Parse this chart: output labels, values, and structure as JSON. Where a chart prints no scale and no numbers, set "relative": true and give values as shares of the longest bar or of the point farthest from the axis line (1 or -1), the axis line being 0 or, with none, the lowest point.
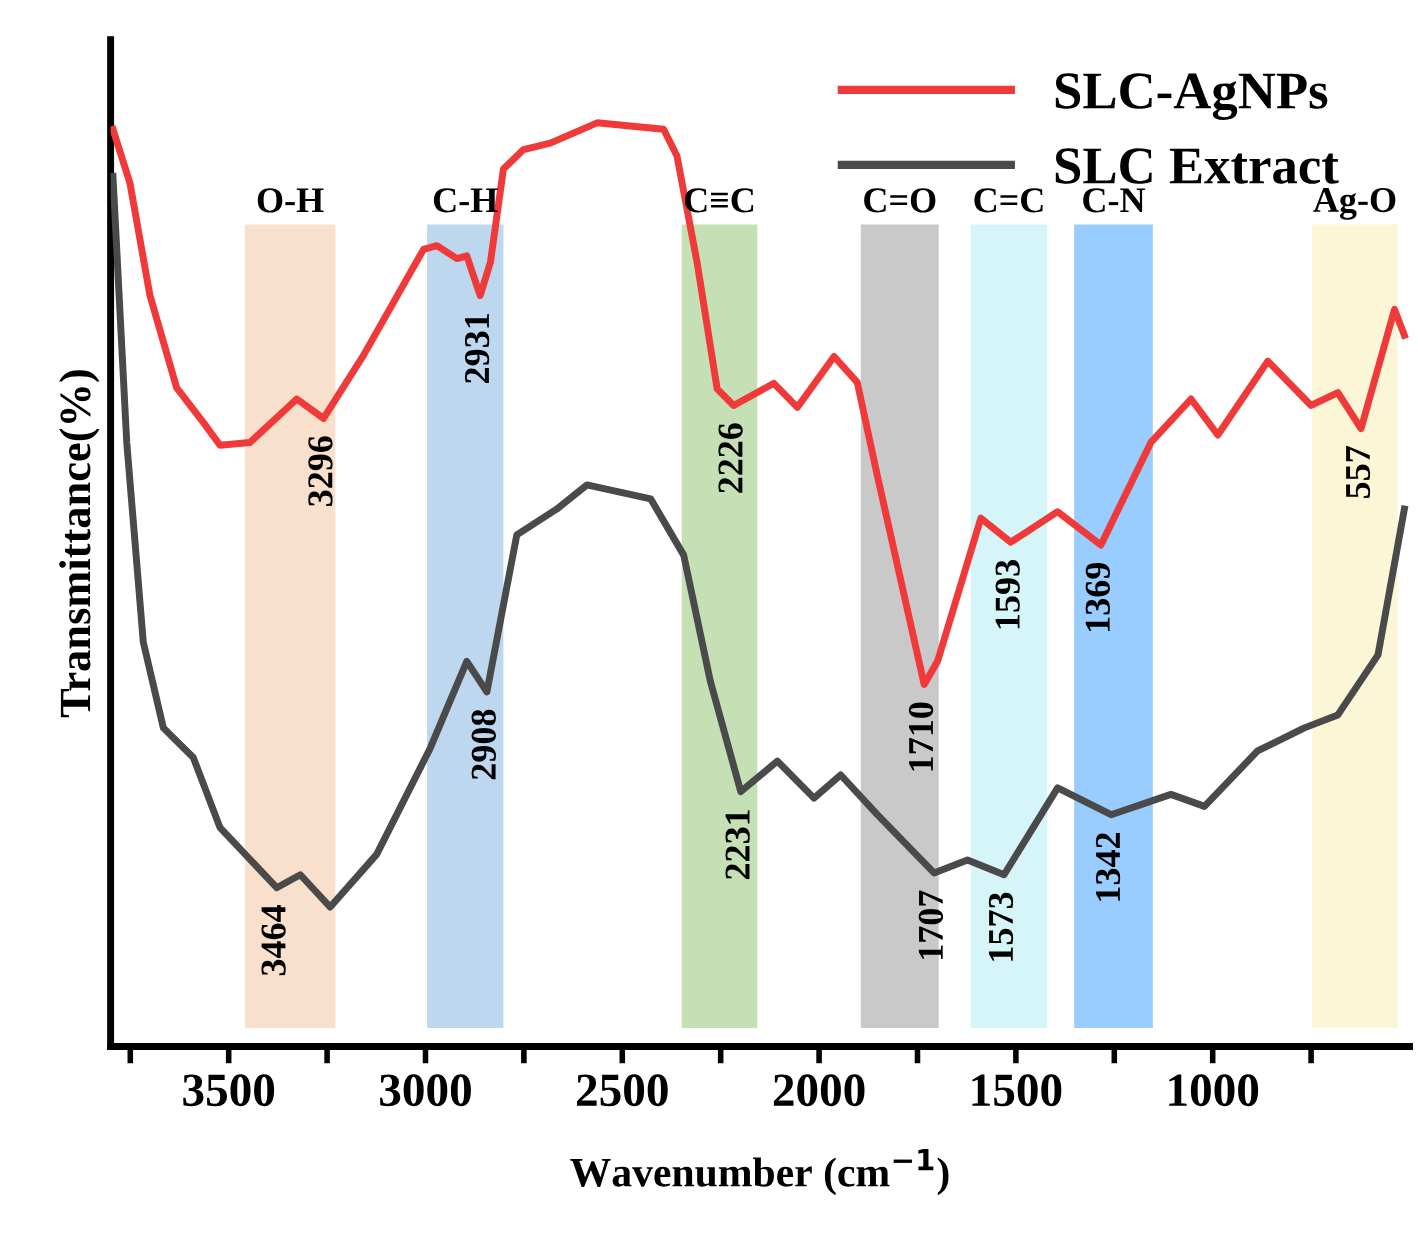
{
  "chart_data": {
    "type": "line",
    "relative": true,
    "xlabel": "Wavenumber (cm$^{−1}$)",
    "ylabel": "Transmittance(%)",
    "xlim": [
      3800,
      500
    ],
    "xticks": [
      {
        "value": 3750,
        "label": null
      },
      3500,
      {
        "value": 3250,
        "label": null
      },
      3000,
      {
        "value": 2750,
        "label": null
      },
      2500,
      {
        "value": 2250,
        "label": null
      },
      2000,
      {
        "value": 1750,
        "label": null
      },
      1500,
      {
        "value": 1250,
        "label": null
      },
      1000,
      {
        "value": 750,
        "label": null
      }
    ],
    "tick_labels": "x",
    "legend": "top right",
    "grid": false,
    "series": [
      {
        "name": "SLC-AgNPs",
        "color": "#f03a3a",
        "x": [
          3794,
          3751,
          3700,
          3632,
          3565,
          3522,
          3446,
          3327,
          3259,
          3158,
          3005,
          2971,
          2920,
          2895,
          2861,
          2835,
          2802,
          2751,
          2683,
          2564,
          2395,
          2361,
          2310,
          2259,
          2217,
          2115,
          2055,
          1962,
          1903,
          1852,
          1733,
          1699,
          1589,
          1513,
          1394,
          1284,
          1157,
          1055,
          987,
          860,
          750,
          682,
          623,
          538,
          513
        ],
        "values": [
          0.993,
          0.935,
          0.813,
          0.713,
          0.676,
          0.651,
          0.654,
          0.701,
          0.68,
          0.748,
          0.863,
          0.867,
          0.853,
          0.856,
          0.813,
          0.849,
          0.95,
          0.971,
          0.978,
          1.0,
          0.993,
          0.964,
          0.849,
          0.712,
          0.694,
          0.718,
          0.692,
          0.747,
          0.719,
          0.618,
          0.392,
          0.417,
          0.572,
          0.546,
          0.579,
          0.543,
          0.654,
          0.701,
          0.662,
          0.742,
          0.694,
          0.708,
          0.669,
          0.798,
          0.77
        ]
      },
      {
        "name": "SLC Extract",
        "color": "#4a4a4a",
        "x": [
          3794,
          3759,
          3717,
          3666,
          3590,
          3522,
          3378,
          3318,
          3242,
          3124,
          2988,
          2895,
          2844,
          2768,
          2666,
          2590,
          2428,
          2344,
          2276,
          2199,
          2106,
          2013,
          1945,
          1852,
          1708,
          1623,
          1530,
          1394,
          1258,
          1106,
          1021,
          886,
          767,
          682,
          580,
          513
        ],
        "values": [
          0.942,
          0.654,
          0.438,
          0.345,
          0.313,
          0.237,
          0.172,
          0.186,
          0.151,
          0.208,
          0.323,
          0.417,
          0.384,
          0.554,
          0.582,
          0.608,
          0.593,
          0.532,
          0.395,
          0.276,
          0.309,
          0.269,
          0.294,
          0.251,
          0.188,
          0.202,
          0.186,
          0.28,
          0.251,
          0.273,
          0.26,
          0.32,
          0.345,
          0.359,
          0.424,
          0.582
        ]
      }
    ],
    "bands": [
      {
        "axis": "x",
        "from": 3459,
        "to": 3229,
        "label": "O-H",
        "color": "#f9e0cc"
      },
      {
        "axis": "x",
        "from": 2996,
        "to": 2802,
        "label": "C-H",
        "color": "#bdd7ee"
      },
      {
        "axis": "x",
        "from": 2349,
        "to": 2157,
        "label": "C≡C",
        "color": "#c5e0b4"
      },
      {
        "axis": "x",
        "from": 1894,
        "to": 1696,
        "label": "C=O",
        "color": "#c9c9c9"
      },
      {
        "axis": "x",
        "from": 1615,
        "to": 1420,
        "label": "C=C",
        "color": "#d5f5f8"
      },
      {
        "axis": "x",
        "from": 1352,
        "to": 1152,
        "label": "C-N",
        "color": "#99ccff"
      },
      {
        "axis": "x",
        "from": 747,
        "to": 530,
        "label": "Ag-O",
        "color": "#fbf6d6"
      }
    ],
    "annotations": [
      {
        "text": "3296",
        "x": 3259,
        "y": 0.68
      },
      {
        "text": "2931",
        "x": 2861,
        "y": 0.813
      },
      {
        "text": "2226",
        "x": 2217,
        "y": 0.694
      },
      {
        "text": "1710",
        "x": 1733,
        "y": 0.392
      },
      {
        "text": "1593",
        "x": 1513,
        "y": 0.546
      },
      {
        "text": "1369",
        "x": 1284,
        "y": 0.543
      },
      {
        "text": "557",
        "x": 623,
        "y": 0.669
      },
      {
        "text": "3464",
        "x": 3378,
        "y": 0.172
      },
      {
        "text": "2908",
        "x": 2844,
        "y": 0.384
      },
      {
        "text": "2231",
        "x": 2199,
        "y": 0.276
      },
      {
        "text": "1707",
        "x": 1708,
        "y": 0.188
      },
      {
        "text": "1573",
        "x": 1530,
        "y": 0.186
      },
      {
        "text": "1342",
        "x": 1258,
        "y": 0.251
      }
    ]
  }
}
